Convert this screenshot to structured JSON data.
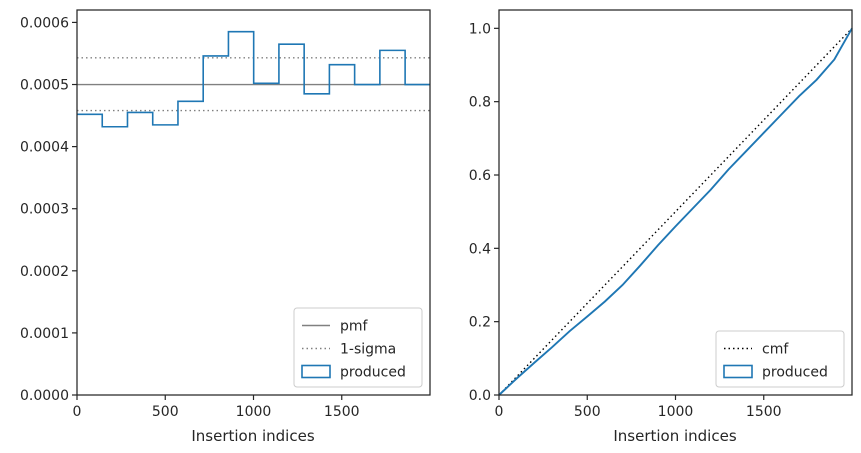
{
  "chart_data": [
    {
      "type": "step",
      "xlabel": "Insertion indices",
      "ylabel": "",
      "xlim": [
        0,
        2000
      ],
      "ylim": [
        0,
        0.00062
      ],
      "xticks": [
        0,
        500,
        1000,
        1500
      ],
      "yticks": [
        0,
        0.0001,
        0.0002,
        0.0003,
        0.0004,
        0.0005,
        0.0006
      ],
      "ytick_labels": [
        "0.0000",
        "0.0001",
        "0.0002",
        "0.0003",
        "0.0004",
        "0.0005",
        "0.0006"
      ],
      "xtick_labels": [
        "0",
        "500",
        "1000",
        "1500"
      ],
      "hlines": [
        {
          "name": "pmf",
          "y": 0.0005,
          "style": "solid",
          "color": "#808080"
        },
        {
          "name": "1-sigma",
          "y": 0.000543,
          "style": "dotted",
          "color": "#808080"
        },
        {
          "name": "1-sigma",
          "y": 0.000458,
          "style": "dotted",
          "color": "#808080"
        }
      ],
      "series": [
        {
          "name": "produced",
          "color": "#1f77b4",
          "bin_edges": [
            0,
            143,
            286,
            429,
            572,
            715,
            858,
            1001,
            1144,
            1287,
            1430,
            1573,
            1716,
            1859,
            2000
          ],
          "values": [
            0.000452,
            0.000432,
            0.000455,
            0.000435,
            0.000473,
            0.000546,
            0.000585,
            0.000502,
            0.000565,
            0.000485,
            0.000532,
            0.0005,
            0.000555,
            0.0005
          ]
        }
      ],
      "legend": {
        "placement": "bottom-right",
        "entries": [
          {
            "label": "pmf",
            "kind": "line-solid",
            "color": "#808080"
          },
          {
            "label": "1-sigma",
            "kind": "line-dotted",
            "color": "#808080"
          },
          {
            "label": "produced",
            "kind": "patch",
            "color": "#1f77b4"
          }
        ]
      }
    },
    {
      "type": "line",
      "xlabel": "Insertion indices",
      "ylabel": "",
      "xlim": [
        0,
        2000
      ],
      "ylim": [
        0,
        1.05
      ],
      "xticks": [
        0,
        500,
        1000,
        1500
      ],
      "yticks": [
        0,
        0.2,
        0.4,
        0.6,
        0.8,
        1.0
      ],
      "ytick_labels": [
        "0.0",
        "0.2",
        "0.4",
        "0.6",
        "0.8",
        "1.0"
      ],
      "xtick_labels": [
        "0",
        "500",
        "1000",
        "1500"
      ],
      "series": [
        {
          "name": "cmf",
          "style": "dotted",
          "color": "#000000",
          "x": [
            0,
            2000
          ],
          "y": [
            0,
            1.0
          ]
        },
        {
          "name": "produced",
          "style": "solid",
          "color": "#1f77b4",
          "x": [
            0,
            100,
            200,
            300,
            400,
            500,
            600,
            700,
            800,
            900,
            1000,
            1100,
            1200,
            1300,
            1400,
            1500,
            1600,
            1700,
            1800,
            1900,
            2000
          ],
          "y": [
            0,
            0.045,
            0.088,
            0.13,
            0.174,
            0.214,
            0.255,
            0.3,
            0.353,
            0.408,
            0.46,
            0.51,
            0.56,
            0.615,
            0.665,
            0.715,
            0.765,
            0.815,
            0.86,
            0.915,
            1.0
          ]
        }
      ],
      "legend": {
        "placement": "bottom-right",
        "entries": [
          {
            "label": "cmf",
            "kind": "line-dotted",
            "color": "#000000"
          },
          {
            "label": "produced",
            "kind": "patch",
            "color": "#1f77b4"
          }
        ]
      }
    }
  ]
}
